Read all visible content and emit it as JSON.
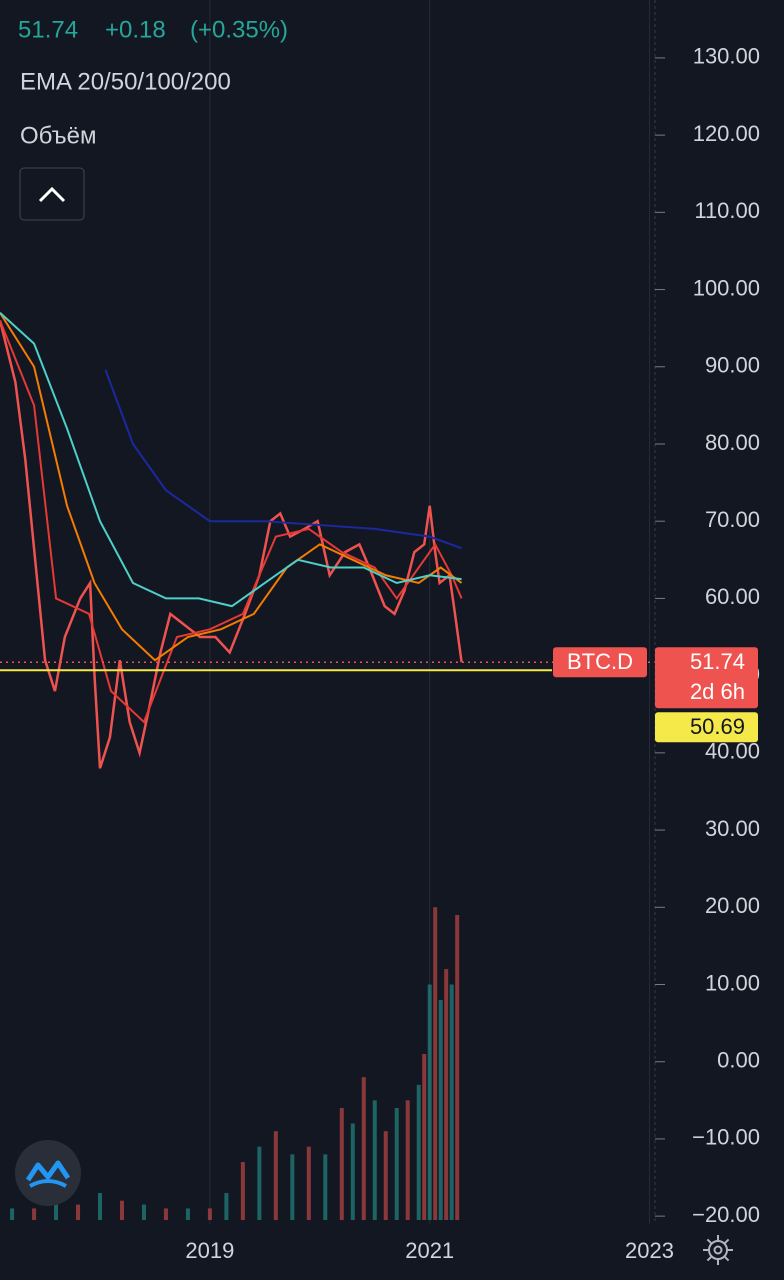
{
  "chart_data": {
    "type": "line",
    "last_price": {
      "value": 51.74,
      "label": "51.74"
    },
    "change": {
      "value": 0.18,
      "label": "+0.18"
    },
    "change_pct": {
      "value": 0.35,
      "label": "(+0.35%)"
    },
    "indicator": "EMA 20/50/100/200",
    "volume_label": "Объём",
    "symbol": "BTC.D",
    "countdown": "2d 6h",
    "level": {
      "value": 50.69,
      "label": "50.69"
    },
    "xlim": [
      2017.09,
      2023.05
    ],
    "xticks": [
      2019,
      2021,
      2023
    ],
    "ylim": [
      -20.5,
      137.5
    ],
    "yticks": [
      {
        "value": 130,
        "label": "130.00"
      },
      {
        "value": 120,
        "label": "120.00"
      },
      {
        "value": 110,
        "label": "110.00"
      },
      {
        "value": 100,
        "label": "100.00"
      },
      {
        "value": 90,
        "label": "90.00"
      },
      {
        "value": 80,
        "label": "80.00"
      },
      {
        "value": 70,
        "label": "70.00"
      },
      {
        "value": 60,
        "label": "60.00"
      },
      {
        "value": 50,
        "label": "50.00"
      },
      {
        "value": 40,
        "label": "40.00"
      },
      {
        "value": 30,
        "label": "30.00"
      },
      {
        "value": 20,
        "label": "20.00"
      },
      {
        "value": 10,
        "label": "10.00"
      },
      {
        "value": 0,
        "label": "0.00"
      },
      {
        "value": -10,
        "label": "−10.00"
      },
      {
        "value": -20,
        "label": "−20.00"
      }
    ],
    "series": [
      {
        "color": "#ef5350",
        "x": [
          2017.09,
          2017.23,
          2017.32,
          2017.41,
          2017.5,
          2017.59,
          2017.68,
          2017.82,
          2017.91,
          2017.95,
          2018.0,
          2018.09,
          2018.18,
          2018.27,
          2018.36,
          2018.45,
          2018.55,
          2018.64,
          2018.73,
          2018.82,
          2018.91,
          2019.05,
          2019.18,
          2019.32,
          2019.45,
          2019.55,
          2019.64,
          2019.73,
          2019.86,
          2019.98,
          2020.09,
          2020.23,
          2020.36,
          2020.45,
          2020.59,
          2020.68,
          2020.77,
          2020.86,
          2020.95,
          2021.0,
          2021.05,
          2021.09,
          2021.18,
          2021.23,
          2021.29
        ],
        "values": [
          96,
          88,
          78,
          65,
          52,
          48,
          55,
          60,
          62,
          50,
          38,
          42,
          52,
          44,
          40,
          46,
          53,
          58,
          57,
          56,
          55,
          55,
          53,
          58,
          63,
          70,
          71,
          68,
          69,
          70,
          63,
          66,
          67,
          64,
          59,
          58,
          61,
          66,
          67,
          72,
          66,
          62,
          63,
          58,
          51.74
        ]
      },
      {
        "color": "#e53935",
        "x": [
          2017.09,
          2017.4,
          2017.6,
          2017.9,
          2018.1,
          2018.4,
          2018.7,
          2019.0,
          2019.3,
          2019.6,
          2019.9,
          2020.2,
          2020.5,
          2020.7,
          2020.9,
          2021.05,
          2021.2,
          2021.29
        ],
        "values": [
          96,
          85,
          60,
          58,
          48,
          44,
          55,
          56,
          58,
          68,
          69,
          66,
          64,
          60,
          64,
          67,
          63,
          60
        ]
      },
      {
        "color": "#f57c00",
        "x": [
          2017.09,
          2017.4,
          2017.7,
          2017.95,
          2018.2,
          2018.5,
          2018.8,
          2019.1,
          2019.4,
          2019.7,
          2020.0,
          2020.3,
          2020.6,
          2020.9,
          2021.1,
          2021.29
        ],
        "values": [
          97,
          90,
          72,
          62,
          56,
          52,
          55,
          56,
          58,
          64,
          67,
          65,
          63,
          62,
          64,
          62
        ]
      },
      {
        "color": "#4dd0c8",
        "x": [
          2017.09,
          2017.4,
          2017.7,
          2018.0,
          2018.3,
          2018.6,
          2018.9,
          2019.2,
          2019.5,
          2019.8,
          2020.1,
          2020.4,
          2020.7,
          2021.0,
          2021.29
        ],
        "values": [
          97,
          93,
          82,
          70,
          62,
          60,
          60,
          59,
          62,
          65,
          64,
          64,
          62,
          63,
          62.5
        ]
      },
      {
        "color": "#1a2a9e",
        "x": [
          2018.05,
          2018.3,
          2018.6,
          2019.0,
          2019.5,
          2020.0,
          2020.5,
          2021.0,
          2021.29
        ],
        "values": [
          89.6,
          80,
          74,
          70,
          70,
          69.5,
          69,
          68,
          66.5
        ]
      }
    ],
    "volume": {
      "x": [
        2017.2,
        2017.4,
        2017.6,
        2017.8,
        2018.0,
        2018.2,
        2018.4,
        2018.6,
        2018.8,
        2019.0,
        2019.15,
        2019.3,
        2019.45,
        2019.6,
        2019.75,
        2019.9,
        2020.05,
        2020.2,
        2020.3,
        2020.4,
        2020.5,
        2020.6,
        2020.7,
        2020.8,
        2020.9,
        2020.95,
        2021.0,
        2021.05,
        2021.1,
        2021.15,
        2021.2,
        2021.25
      ],
      "values": [
        -19,
        -19,
        -18.5,
        -18.5,
        -17,
        -18,
        -18.5,
        -19,
        -19,
        -19,
        -17,
        -13,
        -11,
        -9,
        -12,
        -11,
        -12,
        -6,
        -8,
        -2,
        -5,
        -9,
        -6,
        -5,
        -3,
        1,
        10,
        20,
        8,
        12,
        10,
        19
      ]
    }
  }
}
